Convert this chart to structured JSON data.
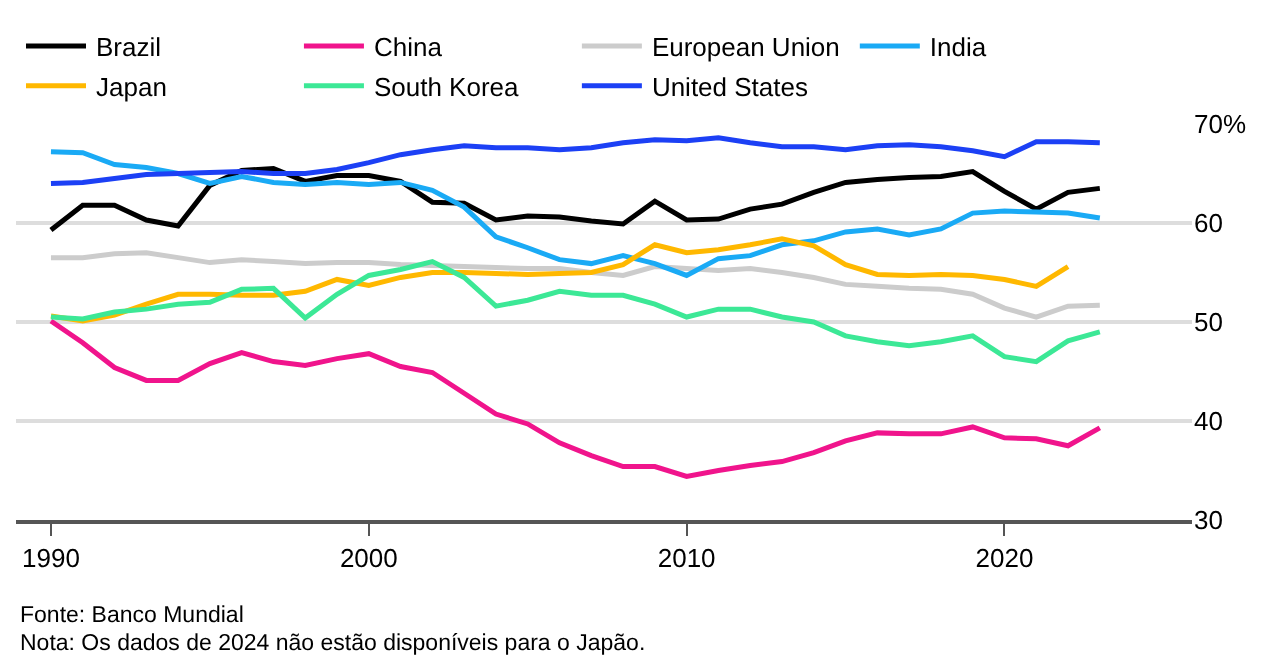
{
  "chart_data": {
    "type": "line",
    "x": [
      1990,
      1991,
      1992,
      1993,
      1994,
      1995,
      1996,
      1997,
      1998,
      1999,
      2000,
      2001,
      2002,
      2003,
      2004,
      2005,
      2006,
      2007,
      2008,
      2009,
      2010,
      2011,
      2012,
      2013,
      2014,
      2015,
      2016,
      2017,
      2018,
      2019,
      2020,
      2021,
      2022,
      2023
    ],
    "series": [
      {
        "name": "Brazil",
        "color": "#000000",
        "values": [
          59.3,
          61.8,
          61.8,
          60.3,
          59.7,
          63.8,
          65.3,
          65.5,
          64.2,
          64.8,
          64.8,
          64.2,
          62.1,
          62.0,
          60.3,
          60.7,
          60.6,
          60.2,
          59.9,
          62.2,
          60.3,
          60.4,
          61.4,
          61.9,
          63.1,
          64.1,
          64.4,
          64.6,
          64.7,
          65.2,
          63.2,
          61.4,
          63.1,
          63.5
        ]
      },
      {
        "name": "China",
        "color": "#f0148c",
        "values": [
          50.1,
          47.9,
          45.4,
          44.1,
          44.1,
          45.8,
          46.9,
          46.0,
          45.6,
          46.3,
          46.8,
          45.5,
          44.9,
          42.8,
          40.7,
          39.7,
          37.8,
          36.5,
          35.4,
          35.4,
          34.4,
          35.0,
          35.5,
          35.9,
          36.8,
          38.0,
          38.8,
          38.7,
          38.7,
          39.4,
          38.3,
          38.2,
          37.5,
          39.3
        ]
      },
      {
        "name": "European Union",
        "color": "#cccccc",
        "values": [
          56.5,
          56.5,
          56.9,
          57.0,
          56.5,
          56.0,
          56.3,
          56.1,
          55.9,
          56.0,
          56.0,
          55.8,
          55.7,
          55.6,
          55.5,
          55.4,
          55.4,
          55.0,
          54.7,
          55.6,
          55.4,
          55.2,
          55.4,
          55.0,
          54.5,
          53.8,
          53.6,
          53.4,
          53.3,
          52.8,
          51.4,
          50.5,
          51.6,
          51.7
        ]
      },
      {
        "name": "India",
        "color": "#1aaaf5",
        "values": [
          67.2,
          67.1,
          65.9,
          65.6,
          65.0,
          64.0,
          64.7,
          64.1,
          63.9,
          64.1,
          63.9,
          64.1,
          63.3,
          61.6,
          58.6,
          57.5,
          56.3,
          55.9,
          56.7,
          55.9,
          54.7,
          56.4,
          56.7,
          57.8,
          58.2,
          59.1,
          59.4,
          58.8,
          59.4,
          61.0,
          61.2,
          61.1,
          61.0,
          60.5
        ]
      },
      {
        "name": "Japan",
        "color": "#ffb800",
        "values": [
          50.6,
          50.1,
          50.7,
          51.8,
          52.8,
          52.8,
          52.7,
          52.7,
          53.1,
          54.3,
          53.7,
          54.5,
          55.0,
          55.0,
          54.9,
          54.8,
          54.9,
          55.0,
          55.8,
          57.8,
          57.0,
          57.3,
          57.8,
          58.4,
          57.7,
          55.8,
          54.8,
          54.7,
          54.8,
          54.7,
          54.3,
          53.6,
          55.6,
          null
        ]
      },
      {
        "name": "South Korea",
        "color": "#3ce896",
        "values": [
          50.5,
          50.3,
          51.0,
          51.3,
          51.8,
          52.0,
          53.3,
          53.4,
          50.4,
          52.8,
          54.7,
          55.3,
          56.1,
          54.5,
          51.6,
          52.2,
          53.1,
          52.7,
          52.7,
          51.8,
          50.5,
          51.3,
          51.3,
          50.5,
          50.0,
          48.6,
          48.0,
          47.6,
          48.0,
          48.6,
          46.5,
          46.0,
          48.1,
          49.0
        ]
      },
      {
        "name": "United States",
        "color": "#1c40f5",
        "values": [
          64.0,
          64.1,
          64.5,
          64.9,
          65.0,
          65.1,
          65.2,
          65.0,
          65.0,
          65.4,
          66.1,
          66.9,
          67.4,
          67.8,
          67.6,
          67.6,
          67.4,
          67.6,
          68.1,
          68.4,
          68.3,
          68.6,
          68.1,
          67.7,
          67.7,
          67.4,
          67.8,
          67.9,
          67.7,
          67.3,
          66.7,
          68.2,
          68.2,
          68.1
        ]
      }
    ],
    "xlim": [
      1988.9,
      2025.9
    ],
    "xticks": [
      1990,
      2000,
      2010,
      2020
    ],
    "ylim": [
      30,
      70
    ],
    "yticks": [
      {
        "value": 70,
        "label": "70%"
      },
      60,
      50,
      40,
      30
    ],
    "grid": "y",
    "legend": "top left",
    "marker": "none",
    "line_style": "solid",
    "annotations": [
      "Fonte: Banco Mundial",
      "Nota: Os dados de 2024 não estão disponíveis para o Japão."
    ]
  }
}
